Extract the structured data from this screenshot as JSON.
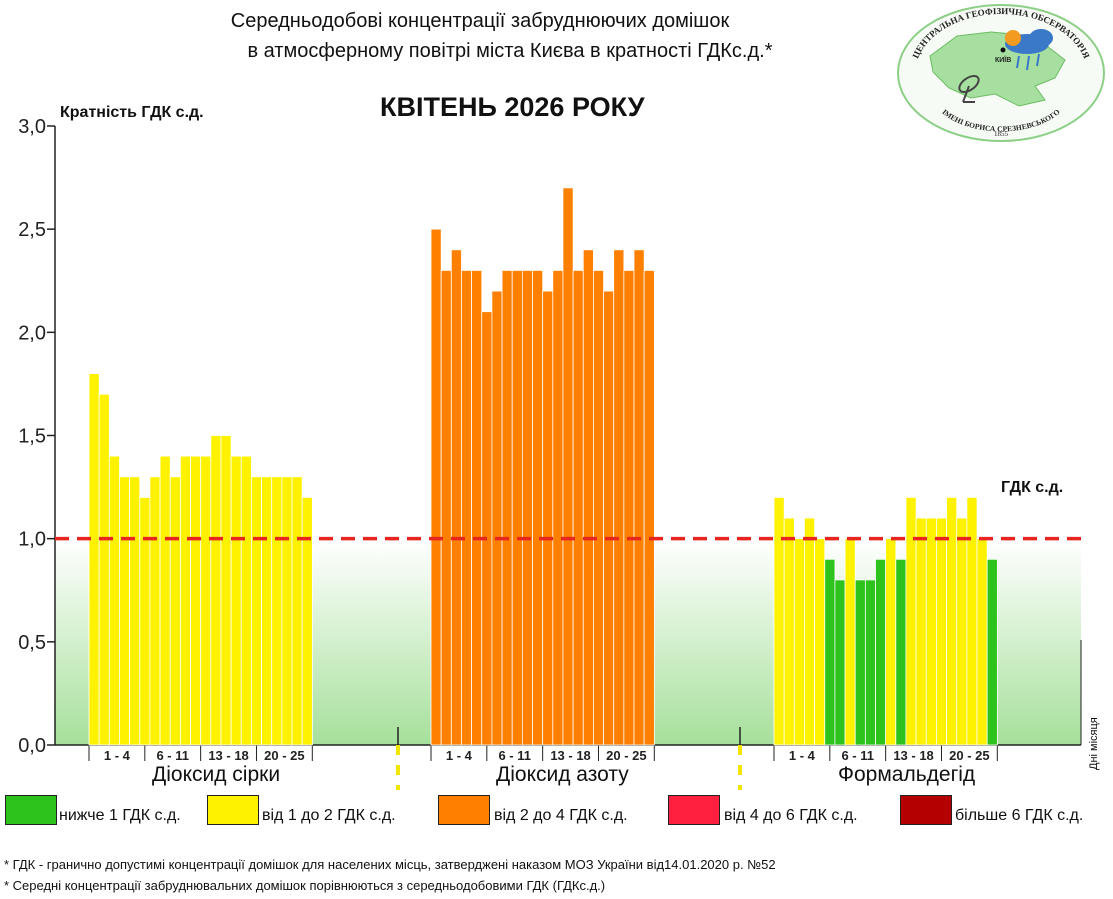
{
  "title_line1": "Середньодобові концентрації забруднюючих домішок",
  "title_line2": "в атмосферному повітрі міста Києва в кратності ГДКс.д.*",
  "month_title": "КВІТЕНЬ 2026 РОКУ",
  "y_axis_label": "Кратність ГДК с.д.",
  "gdk_line_label": "ГДК с.д.",
  "x_axis_side_label": "Дні місяця",
  "logo": {
    "arc_text": "ЦЕНТРАЛЬНА ГЕОФІЗИЧНА ОБСЕРВАТОРІЯ",
    "bottom_text": "ІМЕНІ БОРИСА СРЕЗНЕВСЬКОГО",
    "year": "1855",
    "city": "КИЇВ"
  },
  "legend": [
    {
      "label": "нижче 1 ГДК с.д.",
      "color": "#2dc31c"
    },
    {
      "label": "від 1 до 2 ГДК с.д.",
      "color": "#fff200"
    },
    {
      "label": "від 2 до 4 ГДК с.д.",
      "color": "#ff8000"
    },
    {
      "label": "від 4 до 6 ГДК с.д.",
      "color": "#ff2040"
    },
    {
      "label": "більше 6 ГДК с.д.",
      "color": "#b50000"
    }
  ],
  "footnotes": [
    "* ГДК - гранично допустимі концентрації домішок для населених місць, затверджені наказом МОЗ України від14.01.2020 р. №52",
    "* Середні концентрації забруднювальних домішок порівнюються з середньодобовими  ГДК (ГДКс.д.)"
  ],
  "chart_data": {
    "type": "bar",
    "ylim": [
      0,
      3.0
    ],
    "yticks": [
      "0,0",
      "0,5",
      "1,0",
      "1,5",
      "2,0",
      "2,5",
      "3,0"
    ],
    "ytick_values": [
      0,
      0.5,
      1.0,
      1.5,
      2.0,
      2.5,
      3.0
    ],
    "reference_line": {
      "value": 1.0,
      "label": "ГДК с.д.",
      "color": "#e8251e"
    },
    "series": [
      {
        "name": "Діоксид сірки",
        "day_groups": [
          "1 - 4",
          "6 - 11",
          "13 - 18",
          "20 - 25"
        ],
        "values": [
          1.8,
          1.7,
          1.4,
          1.3,
          1.3,
          1.2,
          1.3,
          1.4,
          1.3,
          1.4,
          1.4,
          1.4,
          1.5,
          1.5,
          1.4,
          1.4,
          1.3,
          1.3,
          1.3,
          1.3,
          1.3,
          1.2
        ]
      },
      {
        "name": "Діоксид азоту",
        "day_groups": [
          "1 - 4",
          "6 - 11",
          "13 - 18",
          "20 - 25"
        ],
        "values": [
          2.5,
          2.3,
          2.4,
          2.3,
          2.3,
          2.1,
          2.2,
          2.3,
          2.3,
          2.3,
          2.3,
          2.2,
          2.3,
          2.7,
          2.3,
          2.4,
          2.3,
          2.2,
          2.4,
          2.3,
          2.4,
          2.3
        ]
      },
      {
        "name": "Формальдегід",
        "day_groups": [
          "1 - 4",
          "6 - 11",
          "13 - 18",
          "20 - 25"
        ],
        "values": [
          1.2,
          1.1,
          1.0,
          1.1,
          1.0,
          0.9,
          0.8,
          1.0,
          0.8,
          0.8,
          0.9,
          1.0,
          0.9,
          1.2,
          1.1,
          1.1,
          1.1,
          1.2,
          1.1,
          1.2,
          1.0,
          0.9
        ]
      }
    ]
  }
}
